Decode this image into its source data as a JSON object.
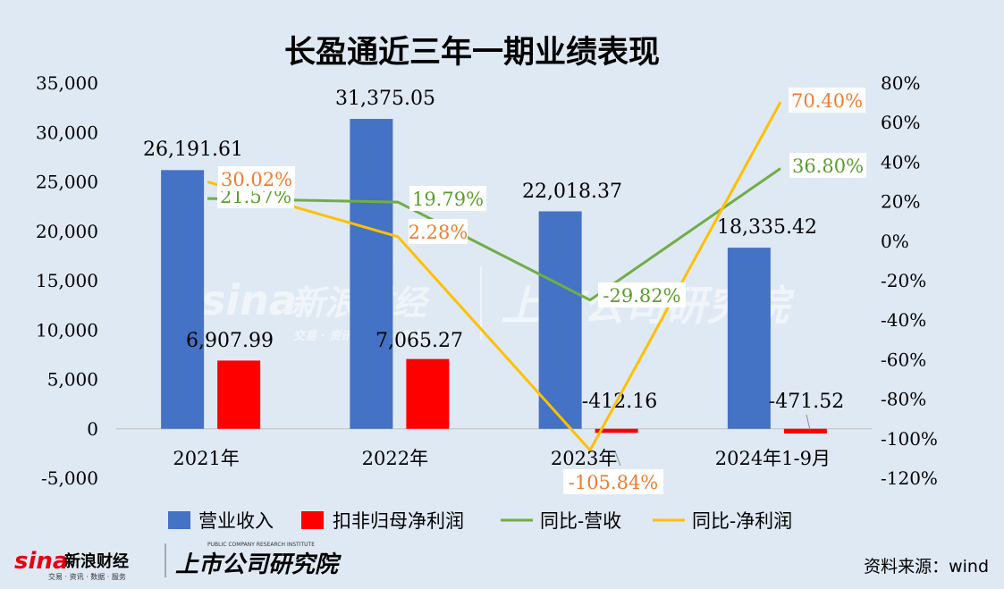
{
  "chart_data": {
    "type": "bar",
    "title": "长盈通近三年一期业绩表现",
    "categories": [
      "2021年",
      "2022年",
      "2023年",
      "2024年1-9月"
    ],
    "ylim_left": [
      -5000,
      35000
    ],
    "yticks_left": [
      "35,000",
      "30,000",
      "25,000",
      "20,000",
      "15,000",
      "10,000",
      "5,000",
      "0",
      "-5,000"
    ],
    "ylim_right": [
      -120,
      80
    ],
    "yticks_right": [
      "80%",
      "60%",
      "40%",
      "20%",
      "0%",
      "-20%",
      "-40%",
      "-60%",
      "-80%",
      "-100%",
      "-120%"
    ],
    "bar_series": [
      {
        "name": "营业收入",
        "color": "#4472c4",
        "values": [
          26191.61,
          31375.05,
          22018.37,
          18335.42
        ],
        "labels": [
          "26,191.61",
          "31,375.05",
          "22,018.37",
          "18,335.42"
        ]
      },
      {
        "name": "扣非归母净利润",
        "color": "#ff0000",
        "values": [
          6907.99,
          7065.27,
          -412.16,
          -471.52
        ],
        "labels": [
          "6,907.99",
          "7,065.27",
          "-412.16",
          "-471.52"
        ]
      }
    ],
    "line_series": [
      {
        "name": "同比-营收",
        "color": "#70ad47",
        "label_color": "#5a9e2f",
        "values": [
          21.57,
          19.79,
          -29.82,
          36.8
        ],
        "labels": [
          "21.57%",
          "19.79%",
          "-29.82%",
          "36.80%"
        ]
      },
      {
        "name": "同比-净利润",
        "color": "#ffc000",
        "label_color": "#ed7d31",
        "values": [
          30.02,
          2.28,
          -105.84,
          70.4
        ],
        "labels": [
          "30.02%",
          "2.28%",
          "-105.84%",
          "70.40%"
        ]
      }
    ],
    "legend": [
      "营业收入",
      "扣非归母净利润",
      "同比-营收",
      "同比-净利润"
    ],
    "legend_position": "bottom",
    "grid": false
  },
  "source": "资料来源：wind",
  "watermark": {
    "brand": "sina",
    "brand_cn": "新浪财经",
    "sub_cn": "交易 · 资讯 · 数据 · 服务",
    "institute_cn": "上市公司研究院",
    "institute_en": "PUBLIC COMPANY RESEARCH INSTITUTE"
  }
}
